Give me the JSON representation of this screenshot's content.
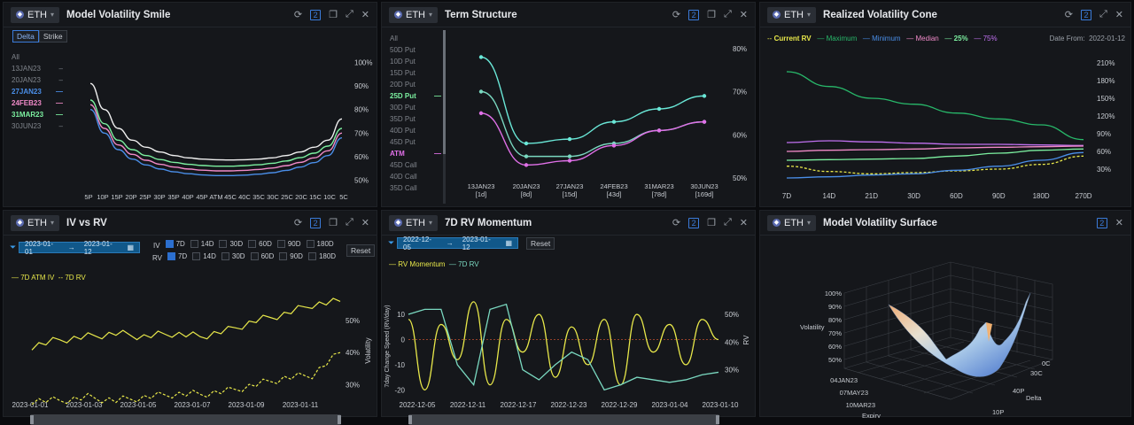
{
  "token": "ETH",
  "colors": {
    "yellow": "#e8e84a",
    "green": "#28b86a",
    "blue": "#4a8ee8",
    "pink": "#f08ac8",
    "lightgreen": "#7cf0a0",
    "violet": "#c070f0",
    "white": "#f0f0f0",
    "teal": "#7ad8c0",
    "cyan": "#6ae8d8",
    "magenta": "#e070e8"
  },
  "smile": {
    "title": "Model Volatility Smile",
    "tabs": [
      "Delta",
      "Strike"
    ],
    "series": [
      "All",
      "13JAN23",
      "20JAN23",
      "27JAN23",
      "24FEB23",
      "31MAR23",
      "30JUN23"
    ],
    "xticks": [
      "5P",
      "10P",
      "15P",
      "20P",
      "25P",
      "30P",
      "35P",
      "40P",
      "45P",
      "ATM",
      "45C",
      "40C",
      "35C",
      "30C",
      "25C",
      "20C",
      "15C",
      "10C",
      "5C"
    ],
    "yticks": [
      "100%",
      "90%",
      "80%",
      "70%",
      "60%",
      "50%"
    ],
    "chart_data": {
      "type": "line",
      "ylim": [
        48,
        102
      ],
      "series": [
        {
          "name": "24FEB23",
          "values": [
            91,
            80,
            72,
            67,
            64,
            62,
            60.5,
            59.5,
            59,
            58.7,
            58.6,
            58.7,
            59,
            59.5,
            60.5,
            62,
            64,
            67,
            76
          ]
        },
        {
          "name": "27JAN23",
          "values": [
            84,
            74,
            67,
            63,
            60.5,
            58.8,
            57.6,
            56.8,
            56.3,
            56,
            56,
            56.2,
            56.6,
            57.2,
            58.2,
            59.6,
            61.5,
            64.5,
            72
          ]
        },
        {
          "name": "31MAR23",
          "values": [
            82,
            72,
            65,
            61,
            58.5,
            56.8,
            55.6,
            54.8,
            54.3,
            54,
            54,
            54.2,
            54.6,
            55.2,
            56.2,
            57.6,
            59.5,
            62.5,
            70
          ]
        },
        {
          "name": "13JAN23",
          "values": [
            80,
            70,
            63,
            59,
            56.5,
            54.8,
            53.6,
            52.8,
            52.3,
            52,
            52,
            52.2,
            52.6,
            53.2,
            54.2,
            55.6,
            57.5,
            60.5,
            68
          ]
        }
      ]
    }
  },
  "term": {
    "title": "Term Structure",
    "list": [
      "All",
      "50D Put",
      "10D Put",
      "15D Put",
      "20D Put",
      "25D Put",
      "30D Put",
      "35D Put",
      "40D Put",
      "45D Put",
      "ATM",
      "45D Call",
      "40D Call",
      "35D Call"
    ],
    "xticks": [
      "13JAN23\n[1d]",
      "20JAN23\n[8d]",
      "27JAN23\n[15d]",
      "24FEB23\n[43d]",
      "31MAR23\n[78d]",
      "30JUN23\n[169d]"
    ],
    "yticks": [
      "80%",
      "70%",
      "60%",
      "50%"
    ],
    "chart_data": {
      "type": "line",
      "ylim": [
        50,
        82
      ],
      "series": [
        {
          "name": "25D Put",
          "values": [
            78,
            58,
            59,
            63,
            66,
            69
          ]
        },
        {
          "name": "ATM",
          "values": [
            70,
            55,
            55,
            58,
            61,
            63
          ]
        },
        {
          "name": "45D Call",
          "values": [
            65,
            53,
            54,
            57.5,
            61,
            63
          ]
        }
      ]
    }
  },
  "cone": {
    "title": "Realized Volatility Cone",
    "legend": [
      "Current RV",
      "Maximum",
      "Minimum",
      "Median",
      "25%",
      "75%"
    ],
    "date_label": "Date From:",
    "date": "2022-01-12",
    "xticks": [
      "7D",
      "14D",
      "21D",
      "30D",
      "60D",
      "90D",
      "180D",
      "270D"
    ],
    "yticks": [
      "210%",
      "180%",
      "150%",
      "120%",
      "90%",
      "60%",
      "30%"
    ],
    "chart_data": {
      "type": "line",
      "ylim": [
        0,
        225
      ],
      "series": [
        {
          "name": "Maximum",
          "values": [
            195,
            170,
            150,
            140,
            125,
            115,
            105,
            80
          ]
        },
        {
          "name": "75%",
          "values": [
            75,
            78,
            76,
            74,
            72,
            72,
            71,
            70
          ]
        },
        {
          "name": "Median",
          "values": [
            60,
            62,
            63,
            64,
            66,
            67,
            68,
            69
          ]
        },
        {
          "name": "25%",
          "values": [
            45,
            46,
            47,
            48,
            52,
            57,
            62,
            64
          ]
        },
        {
          "name": "Current RV",
          "values": [
            35,
            26,
            22,
            24,
            27,
            30,
            38,
            52
          ]
        },
        {
          "name": "Minimum",
          "values": [
            15,
            17,
            20,
            22,
            28,
            35,
            45,
            58
          ]
        }
      ]
    }
  },
  "ivrv": {
    "title": "IV vs RV",
    "date_from": "2023-01-01",
    "date_to": "2023-01-12",
    "iv_label": "IV",
    "rv_label": "RV",
    "tenors": [
      "7D",
      "14D",
      "30D",
      "60D",
      "90D",
      "180D"
    ],
    "reset": "Reset",
    "legend": [
      "7D ATM IV",
      "7D RV"
    ],
    "xticks": [
      "2023-01-01",
      "2023-01-03",
      "2023-01-05",
      "2023-01-07",
      "2023-01-09",
      "2023-01-11"
    ],
    "yticks": [
      "50%",
      "40%",
      "30%"
    ],
    "ylabel": "Volatility",
    "chart_data": {
      "type": "line",
      "ylim": [
        24,
        60
      ],
      "series": [
        {
          "name": "7D ATM IV",
          "values": [
            42,
            44,
            45,
            46,
            45,
            46,
            45,
            47,
            50,
            52,
            55,
            56
          ]
        },
        {
          "name": "7D RV",
          "values": [
            25,
            25,
            26,
            25,
            26,
            27,
            27,
            28,
            30,
            32,
            33,
            40
          ]
        }
      ]
    }
  },
  "momentum": {
    "title": "7D RV Momentum",
    "date_from": "2022-12-05",
    "date_to": "2023-01-12",
    "reset": "Reset",
    "legend": [
      "RV Momentum",
      "7D RV"
    ],
    "xticks": [
      "2022-12-05",
      "2022-12-11",
      "2022-12-17",
      "2022-12-23",
      "2022-12-29",
      "2023-01-04",
      "2023-01-10"
    ],
    "yticks_left": [
      "10",
      "0",
      "-10",
      "-20"
    ],
    "yticks_right": [
      "50%",
      "40%",
      "30%"
    ],
    "ylabel_left": "7day Change Speed (RV/day)",
    "ylabel_right": "RV",
    "chart_data": {
      "type": "line",
      "ylim": [
        -22,
        16
      ],
      "series": [
        {
          "name": "RV Momentum",
          "values": [
            8,
            -20,
            6,
            -8,
            15,
            -18,
            8,
            -5,
            10,
            -15,
            5,
            -10,
            8,
            -18,
            10,
            -5,
            6,
            -10,
            8,
            0
          ]
        },
        {
          "name": "7D RV",
          "values": [
            10,
            12,
            12,
            -10,
            -18,
            12,
            14,
            -12,
            -16,
            -10,
            -5,
            -8,
            -20,
            -18,
            -15,
            -16,
            -17,
            -16,
            -14,
            -13
          ]
        }
      ]
    }
  },
  "surface": {
    "title": "Model Volatility Surface",
    "zticks": [
      "100%",
      "90%",
      "80%",
      "70%",
      "60%",
      "50%"
    ],
    "zlabel": "Volatility",
    "yticks": [
      "04JAN23",
      "07MAY23",
      "10MAR23"
    ],
    "ylabel": "Expiry",
    "xticks": [
      "0C",
      "30C",
      "40P",
      "10P"
    ],
    "xlabel": "Delta"
  }
}
